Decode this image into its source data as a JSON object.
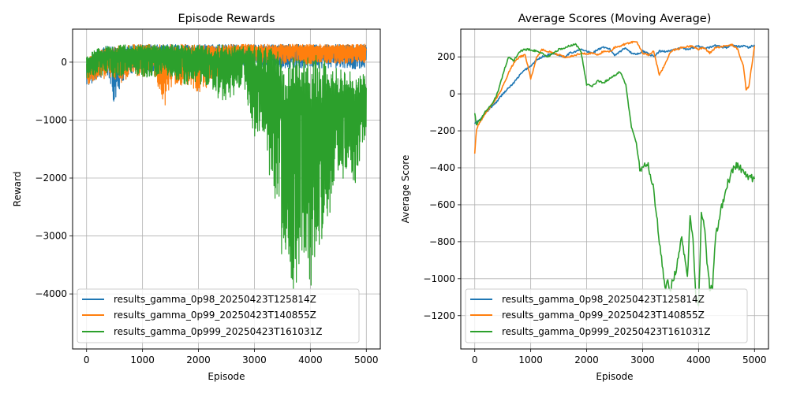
{
  "series_colors": [
    "#1f77b4",
    "#ff7f0e",
    "#2ca02c"
  ],
  "chart_data": [
    {
      "type": "line",
      "title": "Episode Rewards",
      "xlabel": "Episode",
      "ylabel": "Reward",
      "xlim": [
        -250,
        5250
      ],
      "ylim": [
        -4950,
        570
      ],
      "xticks": [
        0,
        1000,
        2000,
        3000,
        4000,
        5000
      ],
      "xtick_labels": [
        "0",
        "1000",
        "2000",
        "3000",
        "4000",
        "5000"
      ],
      "yticks": [
        0,
        -1000,
        -2000,
        -3000,
        -4000
      ],
      "ytick_labels": [
        "0",
        "−1000",
        "−2000",
        "−3000",
        "−4000"
      ],
      "grid": true,
      "legend_position": "lower-left",
      "series": [
        {
          "name": "results_gamma_0p98_20250423T125814Z",
          "x": [
            0,
            100,
            200,
            300,
            400,
            500,
            600,
            700,
            800,
            1000,
            1200,
            1400,
            1600,
            1800,
            2000,
            2200,
            2400,
            2600,
            2800,
            3000,
            3200,
            3400,
            3600,
            3800,
            4000,
            4200,
            4400,
            4600,
            4800,
            5000
          ],
          "upper": [
            60,
            150,
            220,
            260,
            280,
            290,
            295,
            300,
            300,
            300,
            300,
            305,
            305,
            305,
            305,
            305,
            305,
            305,
            305,
            305,
            305,
            305,
            305,
            305,
            305,
            305,
            305,
            305,
            305,
            305
          ],
          "lower": [
            -500,
            -380,
            -300,
            -330,
            -300,
            -760,
            -420,
            -250,
            -200,
            -200,
            -150,
            -150,
            -120,
            -110,
            -120,
            -110,
            -100,
            -110,
            -110,
            -100,
            -100,
            -100,
            -110,
            -100,
            -100,
            -100,
            -100,
            -100,
            -120,
            -120
          ]
        },
        {
          "name": "results_gamma_0p99_20250423T140855Z",
          "x": [
            0,
            100,
            200,
            300,
            400,
            500,
            600,
            700,
            800,
            1000,
            1200,
            1400,
            1600,
            1800,
            2000,
            2200,
            2400,
            2600,
            2800,
            3000,
            3200,
            3400,
            3600,
            3800,
            4000,
            4200,
            4400,
            4600,
            4800,
            5000
          ],
          "upper": [
            50,
            130,
            200,
            250,
            270,
            290,
            300,
            300,
            305,
            305,
            310,
            310,
            310,
            310,
            310,
            310,
            310,
            310,
            310,
            310,
            310,
            310,
            310,
            310,
            310,
            310,
            310,
            310,
            310,
            310
          ],
          "lower": [
            -400,
            -350,
            -280,
            -300,
            -250,
            -300,
            -380,
            -300,
            -250,
            -250,
            -200,
            -770,
            -350,
            -450,
            -540,
            -400,
            -250,
            -100,
            0,
            0,
            -10,
            -20,
            -30,
            -20,
            -40,
            -10,
            -20,
            -30,
            -10,
            -20
          ]
        },
        {
          "name": "results_gamma_0p999_20250423T161031Z",
          "x": [
            0,
            100,
            200,
            300,
            400,
            500,
            600,
            700,
            800,
            1000,
            1200,
            1400,
            1600,
            1800,
            2000,
            2200,
            2400,
            2600,
            2800,
            3000,
            3100,
            3200,
            3300,
            3400,
            3500,
            3600,
            3700,
            3800,
            3900,
            4000,
            4100,
            4200,
            4300,
            4400,
            4500,
            4600,
            4700,
            4800,
            4900,
            5000
          ],
          "upper": [
            100,
            180,
            240,
            270,
            280,
            290,
            295,
            300,
            300,
            300,
            300,
            300,
            300,
            300,
            300,
            300,
            300,
            290,
            280,
            270,
            260,
            250,
            240,
            220,
            200,
            150,
            100,
            50,
            100,
            150,
            120,
            50,
            0,
            -50,
            -100,
            -150,
            -150,
            -200,
            -200,
            -200
          ],
          "lower": [
            -300,
            -250,
            -200,
            -250,
            -200,
            -300,
            -250,
            -200,
            -200,
            -250,
            -300,
            -200,
            -300,
            -400,
            -350,
            -500,
            -700,
            -600,
            -400,
            -1300,
            -1200,
            -1450,
            -2200,
            -2500,
            -3500,
            -3300,
            -4100,
            -3600,
            -3400,
            -4000,
            -3300,
            -3100,
            -2700,
            -2500,
            -2000,
            -2100,
            -1700,
            -2200,
            -1600,
            -1200
          ]
        }
      ]
    },
    {
      "type": "line",
      "title": "Average Scores (Moving Average)",
      "xlabel": "Episode",
      "ylabel": "Average Score",
      "xlim": [
        -250,
        5250
      ],
      "ylim": [
        -1380,
        350
      ],
      "xticks": [
        0,
        1000,
        2000,
        3000,
        4000,
        5000
      ],
      "xtick_labels": [
        "0",
        "1000",
        "2000",
        "3000",
        "4000",
        "5000"
      ],
      "yticks": [
        200,
        0,
        -200,
        -400,
        -600,
        -800,
        -1000,
        -1200
      ],
      "ytick_labels": [
        "200",
        "0",
        "−200",
        "−400",
        "−600",
        "−800",
        "−1000",
        "−1200"
      ],
      "grid": true,
      "legend_position": "lower-left",
      "series": [
        {
          "name": "results_gamma_0p98_20250423T125814Z",
          "x": [
            0,
            50,
            100,
            200,
            300,
            400,
            500,
            600,
            700,
            800,
            900,
            1000,
            1100,
            1200,
            1300,
            1400,
            1500,
            1600,
            1700,
            1800,
            1900,
            2000,
            2100,
            2200,
            2300,
            2400,
            2500,
            2600,
            2700,
            2800,
            2900,
            3000,
            3100,
            3200,
            3300,
            3400,
            3500,
            3600,
            3700,
            3800,
            3900,
            4000,
            4100,
            4200,
            4300,
            4400,
            4500,
            4600,
            4700,
            4800,
            4900,
            5000
          ],
          "y": [
            -160,
            -150,
            -140,
            -100,
            -70,
            -40,
            0,
            30,
            60,
            100,
            130,
            150,
            180,
            200,
            210,
            220,
            210,
            200,
            220,
            230,
            240,
            230,
            220,
            240,
            250,
            245,
            210,
            230,
            250,
            220,
            215,
            230,
            220,
            200,
            230,
            230,
            235,
            240,
            250,
            240,
            250,
            260,
            245,
            250,
            260,
            255,
            250,
            265,
            255,
            260,
            250,
            265
          ]
        },
        {
          "name": "results_gamma_0p99_20250423T140855Z",
          "x": [
            0,
            30,
            60,
            100,
            200,
            300,
            400,
            500,
            600,
            700,
            800,
            900,
            950,
            1000,
            1100,
            1200,
            1300,
            1400,
            1500,
            1600,
            1700,
            1800,
            1900,
            2000,
            2100,
            2200,
            2300,
            2400,
            2500,
            2600,
            2700,
            2800,
            2900,
            3000,
            3100,
            3200,
            3300,
            3400,
            3500,
            3600,
            3700,
            3800,
            3900,
            4000,
            4100,
            4200,
            4300,
            4400,
            4500,
            4600,
            4700,
            4800,
            4850,
            4900,
            5000
          ],
          "y": [
            -320,
            -200,
            -170,
            -150,
            -100,
            -60,
            -20,
            40,
            110,
            170,
            200,
            210,
            150,
            80,
            190,
            240,
            230,
            220,
            210,
            200,
            200,
            210,
            220,
            215,
            220,
            210,
            230,
            225,
            250,
            260,
            270,
            280,
            280,
            220,
            210,
            230,
            100,
            160,
            230,
            240,
            250,
            255,
            260,
            240,
            250,
            220,
            250,
            255,
            260,
            265,
            240,
            150,
            25,
            40,
            260
          ]
        },
        {
          "name": "results_gamma_0p999_20250423T161031Z",
          "x": [
            0,
            30,
            60,
            100,
            200,
            300,
            400,
            500,
            600,
            700,
            800,
            900,
            1000,
            1100,
            1200,
            1300,
            1400,
            1500,
            1600,
            1700,
            1800,
            1900,
            2000,
            2100,
            2200,
            2300,
            2400,
            2500,
            2600,
            2700,
            2800,
            2900,
            2950,
            3000,
            3050,
            3100,
            3200,
            3300,
            3400,
            3450,
            3500,
            3600,
            3700,
            3800,
            3850,
            3900,
            3950,
            4000,
            4050,
            4100,
            4150,
            4200,
            4250,
            4300,
            4400,
            4500,
            4600,
            4700,
            4800,
            4900,
            5000
          ],
          "y": [
            -100,
            -170,
            -150,
            -140,
            -90,
            -60,
            0,
            100,
            200,
            180,
            230,
            240,
            240,
            230,
            220,
            200,
            220,
            240,
            250,
            260,
            270,
            230,
            50,
            40,
            70,
            60,
            80,
            100,
            120,
            50,
            -180,
            -280,
            -400,
            -410,
            -380,
            -390,
            -520,
            -800,
            -1050,
            -1020,
            -1050,
            -950,
            -780,
            -1000,
            -650,
            -780,
            -1070,
            -1150,
            -650,
            -700,
            -900,
            -1050,
            -1040,
            -780,
            -630,
            -500,
            -420,
            -380,
            -430,
            -450,
            -460
          ]
        }
      ]
    }
  ]
}
